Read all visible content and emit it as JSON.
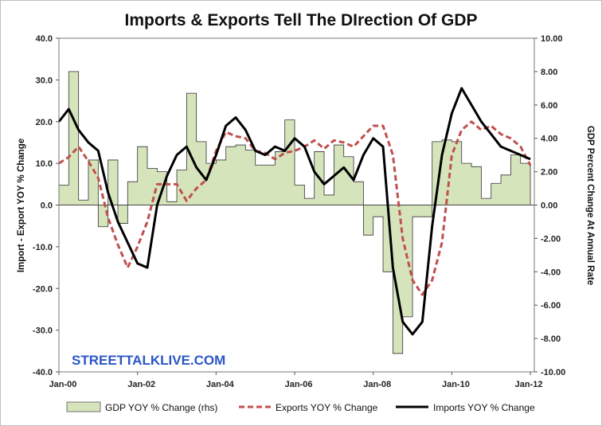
{
  "chart_data": {
    "type": "line",
    "title": "Imports & Exports Tell The DIrection Of GDP",
    "watermark": "STREETTALKLIVE.COM",
    "ylabel_left": "Import - Export YOY % Change",
    "ylabel_right": "GDP Percent Change At Annual Rate",
    "ylim_left": [
      -40,
      40
    ],
    "ylim_right": [
      -10,
      10
    ],
    "yticks_left": [
      "40.0",
      "30.0",
      "20.0",
      "10.0",
      "0.0",
      "-10.0",
      "-20.0",
      "-30.0",
      "-40.0"
    ],
    "yticks_right": [
      "10.00",
      "8.00",
      "6.00",
      "4.00",
      "2.00",
      "0.00",
      "-2.00",
      "-4.00",
      "-6.00",
      "-8.00",
      "-10.00"
    ],
    "xticks": [
      "Jan-00",
      "Jan-02",
      "Jan-04",
      "Jan-06",
      "Jan-08",
      "Jan-10",
      "Jan-12"
    ],
    "x_range_years": [
      2000.0,
      2012.1
    ],
    "grid": false,
    "legend_position": "bottom",
    "series": [
      {
        "name": "GDP YOY % Change (rhs)",
        "kind": "area",
        "axis": "right",
        "color": "#d6e4bc",
        "x": [
          2000.0,
          2000.25,
          2000.5,
          2000.75,
          2001.0,
          2001.25,
          2001.5,
          2001.75,
          2002.0,
          2002.25,
          2002.5,
          2002.75,
          2003.0,
          2003.25,
          2003.5,
          2003.75,
          2004.0,
          2004.25,
          2004.5,
          2004.75,
          2005.0,
          2005.25,
          2005.5,
          2005.75,
          2006.0,
          2006.25,
          2006.5,
          2006.75,
          2007.0,
          2007.25,
          2007.5,
          2007.75,
          2008.0,
          2008.25,
          2008.5,
          2008.75,
          2009.0,
          2009.25,
          2009.5,
          2009.75,
          2010.0,
          2010.25,
          2010.5,
          2010.75,
          2011.0,
          2011.25,
          2011.5,
          2011.75,
          2012.0
        ],
        "values": [
          1.2,
          8.0,
          0.3,
          2.7,
          -1.3,
          2.7,
          -1.1,
          1.4,
          3.5,
          2.2,
          2.0,
          0.2,
          2.1,
          6.7,
          3.8,
          2.5,
          2.7,
          3.5,
          3.6,
          3.3,
          2.4,
          2.4,
          3.2,
          5.1,
          1.2,
          0.4,
          3.2,
          0.6,
          3.6,
          2.9,
          1.4,
          -1.8,
          -0.7,
          -4.0,
          -8.9,
          -6.7,
          -0.7,
          -0.7,
          3.8,
          3.9,
          3.8,
          2.5,
          2.3,
          0.4,
          1.3,
          1.8,
          3.0,
          2.5,
          0.0
        ]
      },
      {
        "name": "Exports YOY % Change",
        "kind": "line",
        "axis": "left",
        "color": "#c0504d",
        "dashed": true,
        "x": [
          2000.0,
          2000.25,
          2000.5,
          2000.75,
          2001.0,
          2001.25,
          2001.5,
          2001.75,
          2002.0,
          2002.25,
          2002.5,
          2002.75,
          2003.0,
          2003.25,
          2003.5,
          2003.75,
          2004.0,
          2004.25,
          2004.5,
          2004.75,
          2005.0,
          2005.25,
          2005.5,
          2005.75,
          2006.0,
          2006.25,
          2006.5,
          2006.75,
          2007.0,
          2007.25,
          2007.5,
          2007.75,
          2008.0,
          2008.25,
          2008.5,
          2008.75,
          2009.0,
          2009.25,
          2009.5,
          2009.75,
          2010.0,
          2010.25,
          2010.5,
          2010.75,
          2011.0,
          2011.25,
          2011.5,
          2011.75,
          2012.0
        ],
        "values": [
          10.0,
          11.5,
          14.0,
          10.5,
          6.5,
          -3.0,
          -9.5,
          -15.0,
          -10.0,
          -4.0,
          5.0,
          5.0,
          5.0,
          1.0,
          4.0,
          6.0,
          13.0,
          17.5,
          16.5,
          16.0,
          13.0,
          12.5,
          11.0,
          12.5,
          13.0,
          14.0,
          15.5,
          13.5,
          15.5,
          15.0,
          14.0,
          16.5,
          19.0,
          19.0,
          12.0,
          -8.0,
          -18.0,
          -21.5,
          -18.0,
          -9.0,
          12.0,
          18.0,
          20.0,
          18.0,
          19.0,
          17.0,
          16.0,
          14.0,
          9.5
        ]
      },
      {
        "name": "Imports YOY % Change",
        "kind": "line",
        "axis": "left",
        "color": "#000000",
        "dashed": false,
        "x": [
          2000.0,
          2000.25,
          2000.5,
          2000.75,
          2001.0,
          2001.25,
          2001.5,
          2001.75,
          2002.0,
          2002.25,
          2002.5,
          2002.75,
          2003.0,
          2003.25,
          2003.5,
          2003.75,
          2004.0,
          2004.25,
          2004.5,
          2004.75,
          2005.0,
          2005.25,
          2005.5,
          2005.75,
          2006.0,
          2006.25,
          2006.5,
          2006.75,
          2007.0,
          2007.25,
          2007.5,
          2007.75,
          2008.0,
          2008.25,
          2008.5,
          2008.75,
          2009.0,
          2009.25,
          2009.5,
          2009.75,
          2010.0,
          2010.25,
          2010.5,
          2010.75,
          2011.0,
          2011.25,
          2011.5,
          2011.75,
          2012.0
        ],
        "values": [
          20.0,
          23.0,
          18.0,
          15.0,
          13.0,
          3.0,
          -4.0,
          -9.0,
          -14.0,
          -15.0,
          0.0,
          7.0,
          12.0,
          14.0,
          9.0,
          6.0,
          12.0,
          19.0,
          21.0,
          18.0,
          13.0,
          12.0,
          14.0,
          13.0,
          16.0,
          14.0,
          8.0,
          5.0,
          7.0,
          9.0,
          6.0,
          12.0,
          16.0,
          14.0,
          -15.0,
          -28.0,
          -31.0,
          -28.0,
          -5.0,
          12.0,
          22.0,
          28.0,
          24.0,
          20.0,
          17.0,
          14.0,
          13.0,
          12.0,
          11.0
        ]
      }
    ]
  }
}
